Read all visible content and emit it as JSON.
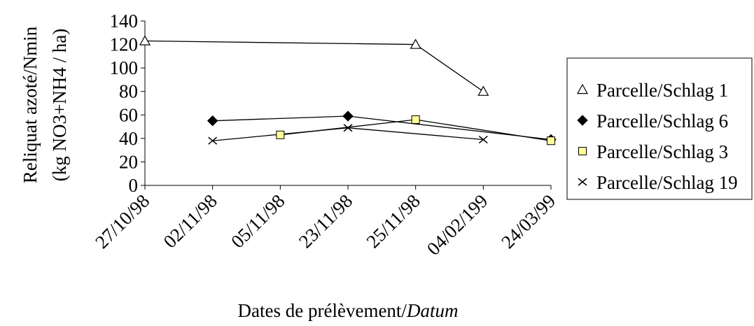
{
  "chart_data": {
    "type": "line",
    "categories": [
      "27/10/98",
      "02/11/98",
      "05/11/98",
      "23/11/98",
      "25/11/98",
      "04/02/199",
      "24/03/99"
    ],
    "ylim": [
      0,
      140
    ],
    "yticks": [
      0,
      20,
      40,
      60,
      80,
      100,
      120,
      140
    ],
    "ylabel_line1": "Reliquat azoté/Nmin",
    "ylabel_line2": "(kg  NO3+NH4 / ha)",
    "xlabel_main": "Dates de prélèvement/",
    "xlabel_italic": "Datum",
    "legend_position": "right",
    "grid": false,
    "series": [
      {
        "name": "Parcelle/Schlag 1",
        "marker": "triangle-open",
        "values": [
          123,
          null,
          null,
          null,
          120,
          80,
          null
        ]
      },
      {
        "name": "Parcelle/Schlag 6",
        "marker": "diamond-filled",
        "values": [
          null,
          55,
          null,
          59,
          null,
          null,
          39
        ]
      },
      {
        "name": "Parcelle/Schlag 3",
        "marker": "square-yellow",
        "color": "#ffff99",
        "values": [
          null,
          null,
          43,
          null,
          56,
          null,
          38
        ]
      },
      {
        "name": "Parcelle/Schlag 19",
        "marker": "x",
        "values": [
          null,
          38,
          null,
          49,
          null,
          39,
          null
        ]
      }
    ]
  }
}
